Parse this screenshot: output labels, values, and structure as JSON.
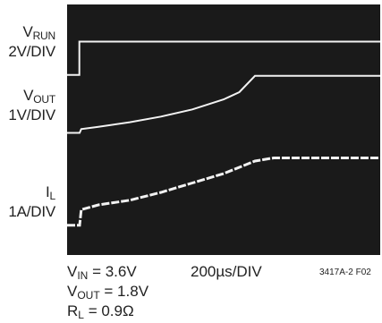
{
  "chart_data": {
    "type": "line",
    "x_scale": "200µs/DIV",
    "traces": [
      {
        "symbol": "V",
        "sub": "RUN",
        "scale": "2V/DIV",
        "x": [
          0,
          0.39,
          0.39,
          10
        ],
        "y": [
          0,
          0,
          2.13,
          2.13
        ]
      },
      {
        "symbol": "V",
        "sub": "OUT",
        "scale": "1V/DIV",
        "x": [
          0,
          0.4,
          0.45,
          1.0,
          2.0,
          3.0,
          4.0,
          5.0,
          5.5,
          6.0,
          6.1,
          10
        ],
        "y": [
          0,
          0,
          0.12,
          0.19,
          0.34,
          0.52,
          0.75,
          1.07,
          1.3,
          1.82,
          1.82,
          1.82
        ]
      },
      {
        "symbol": "I",
        "sub": "L",
        "scale": "1A/DIV",
        "x": [
          0,
          0.4,
          0.45,
          1.0,
          2.0,
          3.0,
          4.0,
          5.0,
          6.0,
          6.6,
          10
        ],
        "y": [
          0,
          0,
          0.5,
          0.65,
          0.8,
          1.05,
          1.35,
          1.65,
          2.05,
          2.15,
          2.15
        ]
      }
    ],
    "conditions": [
      {
        "symbol": "V",
        "sub": "IN",
        "value": " = 3.6V"
      },
      {
        "symbol": "V",
        "sub": "OUT",
        "value": " = 1.8V"
      },
      {
        "symbol": "R",
        "sub": "L",
        "value": " = 0.9Ω"
      }
    ],
    "figure_code": "3417A-2 F02"
  },
  "colors": {
    "screen": "#1a1a1a",
    "trace": "#f2f2f2",
    "text": "#222222"
  }
}
